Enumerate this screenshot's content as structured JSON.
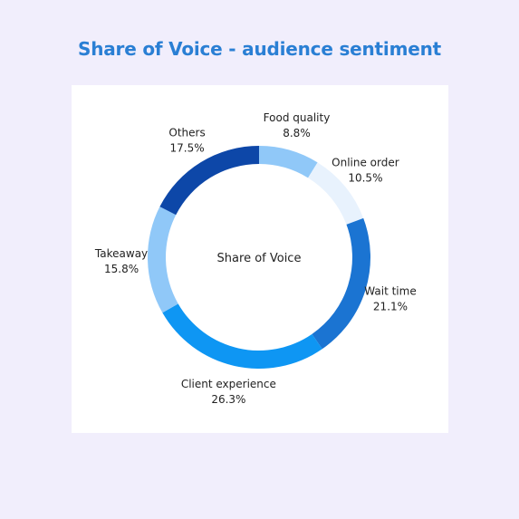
{
  "title": "Share of Voice - audience sentiment",
  "chart_data": {
    "type": "pie",
    "variant": "donut",
    "center_label": "Share of Voice",
    "slices": [
      {
        "label": "Food quality",
        "value": 8.8,
        "value_label": "8.8%",
        "color": "#90c8f8"
      },
      {
        "label": "Online order",
        "value": 10.5,
        "value_label": "10.5%",
        "color": "#e8f2fd"
      },
      {
        "label": "Wait time",
        "value": 21.1,
        "value_label": "21.1%",
        "color": "#1b74d2"
      },
      {
        "label": "Client experience",
        "value": 26.3,
        "value_label": "26.3%",
        "color": "#0e96f3"
      },
      {
        "label": "Takeaway",
        "value": 15.8,
        "value_label": "15.8%",
        "color": "#90c8f8"
      },
      {
        "label": "Others",
        "value": 17.5,
        "value_label": "17.5%",
        "color": "#0d47a8"
      }
    ]
  }
}
